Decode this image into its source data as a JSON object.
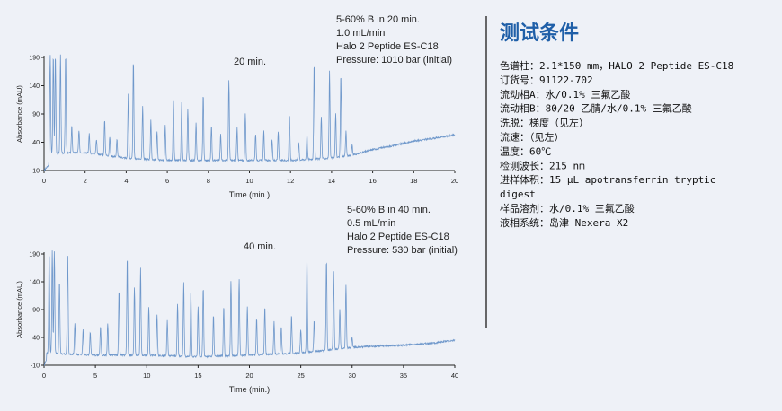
{
  "chart_data": [
    {
      "type": "line",
      "duration_label": "20 min.",
      "conditions": [
        "5-60% B in 20 min.",
        "1.0 mL/min",
        "Halo 2 Peptide ES-C18",
        "Pressure: 1010 bar (initial)"
      ],
      "xlabel": "Time (min.)",
      "ylabel": "Absorbance (mAU)",
      "xlim": [
        0,
        20
      ],
      "ylim": [
        -10,
        190
      ],
      "xticks": [
        0,
        2,
        4,
        6,
        8,
        10,
        12,
        14,
        16,
        18,
        20
      ],
      "yticks": [
        -10,
        40,
        90,
        140,
        190
      ],
      "ytick_labels": [
        "-10",
        "40",
        "90",
        "140",
        "190"
      ],
      "grid": false,
      "color": "#6f98cb",
      "baseline": {
        "x": [
          0,
          2,
          4,
          6,
          8,
          10,
          12,
          14,
          15,
          16,
          17,
          18,
          19,
          20
        ],
        "y": [
          20,
          22,
          12,
          8,
          8,
          8,
          8,
          12,
          17,
          27,
          34,
          42,
          47,
          53
        ]
      },
      "peaks": [
        {
          "x": 0.3,
          "y": 195
        },
        {
          "x": 0.45,
          "y": 195
        },
        {
          "x": 0.55,
          "y": 195
        },
        {
          "x": 0.8,
          "y": 195
        },
        {
          "x": 1.05,
          "y": 195
        },
        {
          "x": 1.35,
          "y": 70
        },
        {
          "x": 1.7,
          "y": 60
        },
        {
          "x": 2.2,
          "y": 55
        },
        {
          "x": 2.55,
          "y": 45
        },
        {
          "x": 2.95,
          "y": 80
        },
        {
          "x": 3.2,
          "y": 50
        },
        {
          "x": 3.55,
          "y": 45
        },
        {
          "x": 4.1,
          "y": 125
        },
        {
          "x": 4.35,
          "y": 185
        },
        {
          "x": 4.8,
          "y": 105
        },
        {
          "x": 5.2,
          "y": 80
        },
        {
          "x": 5.5,
          "y": 60
        },
        {
          "x": 5.9,
          "y": 70
        },
        {
          "x": 6.3,
          "y": 115
        },
        {
          "x": 6.7,
          "y": 110
        },
        {
          "x": 7.0,
          "y": 100
        },
        {
          "x": 7.4,
          "y": 75
        },
        {
          "x": 7.75,
          "y": 125
        },
        {
          "x": 8.15,
          "y": 70
        },
        {
          "x": 8.6,
          "y": 55
        },
        {
          "x": 9.0,
          "y": 150
        },
        {
          "x": 9.4,
          "y": 65
        },
        {
          "x": 9.8,
          "y": 90
        },
        {
          "x": 10.3,
          "y": 55
        },
        {
          "x": 10.7,
          "y": 60
        },
        {
          "x": 11.1,
          "y": 45
        },
        {
          "x": 11.4,
          "y": 60
        },
        {
          "x": 11.95,
          "y": 90
        },
        {
          "x": 12.4,
          "y": 40
        },
        {
          "x": 12.8,
          "y": 55
        },
        {
          "x": 13.15,
          "y": 180
        },
        {
          "x": 13.5,
          "y": 85
        },
        {
          "x": 13.9,
          "y": 165
        },
        {
          "x": 14.2,
          "y": 90
        },
        {
          "x": 14.45,
          "y": 160
        },
        {
          "x": 14.7,
          "y": 60
        },
        {
          "x": 15.0,
          "y": 35
        }
      ]
    },
    {
      "type": "line",
      "duration_label": "40 min.",
      "conditions": [
        "5-60% B in 40 min.",
        "0.5 mL/min",
        "Halo 2 Peptide ES-C18",
        "Pressure: 530 bar (initial)"
      ],
      "xlabel": "Time (min.)",
      "ylabel": "Absorbance (mAU)",
      "xlim": [
        0,
        40
      ],
      "ylim": [
        -10,
        190
      ],
      "xticks": [
        0,
        5,
        10,
        15,
        20,
        25,
        30,
        35,
        40
      ],
      "yticks": [
        -10,
        40,
        90,
        140,
        190
      ],
      "ytick_labels": [
        "-10",
        "40",
        "90",
        "140",
        "190"
      ],
      "grid": false,
      "color": "#6f98cb",
      "baseline": {
        "x": [
          0,
          5,
          10,
          15,
          20,
          25,
          28,
          30,
          32,
          35,
          38,
          40
        ],
        "y": [
          12,
          8,
          8,
          5,
          8,
          12,
          18,
          22,
          24,
          26,
          30,
          35
        ]
      },
      "peaks": [
        {
          "x": 0.5,
          "y": 195
        },
        {
          "x": 0.8,
          "y": 195
        },
        {
          "x": 1.0,
          "y": 195
        },
        {
          "x": 1.5,
          "y": 140
        },
        {
          "x": 2.3,
          "y": 195
        },
        {
          "x": 3.0,
          "y": 65
        },
        {
          "x": 3.8,
          "y": 55
        },
        {
          "x": 4.5,
          "y": 50
        },
        {
          "x": 5.5,
          "y": 60
        },
        {
          "x": 6.2,
          "y": 65
        },
        {
          "x": 7.3,
          "y": 125
        },
        {
          "x": 8.1,
          "y": 185
        },
        {
          "x": 8.8,
          "y": 130
        },
        {
          "x": 9.4,
          "y": 165
        },
        {
          "x": 10.2,
          "y": 95
        },
        {
          "x": 11.0,
          "y": 80
        },
        {
          "x": 12.0,
          "y": 70
        },
        {
          "x": 13.0,
          "y": 100
        },
        {
          "x": 13.6,
          "y": 140
        },
        {
          "x": 14.3,
          "y": 125
        },
        {
          "x": 15.0,
          "y": 95
        },
        {
          "x": 15.5,
          "y": 130
        },
        {
          "x": 16.5,
          "y": 80
        },
        {
          "x": 17.5,
          "y": 95
        },
        {
          "x": 18.2,
          "y": 140
        },
        {
          "x": 19.0,
          "y": 145
        },
        {
          "x": 19.8,
          "y": 95
        },
        {
          "x": 20.7,
          "y": 75
        },
        {
          "x": 21.5,
          "y": 95
        },
        {
          "x": 22.4,
          "y": 70
        },
        {
          "x": 23.1,
          "y": 60
        },
        {
          "x": 24.1,
          "y": 80
        },
        {
          "x": 25.0,
          "y": 55
        },
        {
          "x": 25.6,
          "y": 185
        },
        {
          "x": 26.3,
          "y": 70
        },
        {
          "x": 27.5,
          "y": 180
        },
        {
          "x": 28.2,
          "y": 160
        },
        {
          "x": 28.8,
          "y": 90
        },
        {
          "x": 29.4,
          "y": 135
        },
        {
          "x": 30.0,
          "y": 40
        }
      ]
    }
  ],
  "conditions_panel": {
    "title": "测试条件",
    "lines": [
      "色谱柱：2.1*150 mm，HALO 2 Peptide ES-C18",
      "订货号：91122-702",
      "流动相A：水/0.1% 三氟乙酸",
      "流动相B：80/20 乙腈/水/0.1% 三氟乙酸",
      "洗脱：梯度（见左）",
      "流速：（见左）",
      "温度：60℃",
      "检测波长：215 nm",
      "进样体积：15 μL apotransferrin tryptic",
      "digest",
      "样品溶剂：水/0.1% 三氟乙酸",
      "液相系统：岛津 Nexera X2"
    ],
    "title_color": "#1f5fa8",
    "divider_color": "#444444"
  }
}
